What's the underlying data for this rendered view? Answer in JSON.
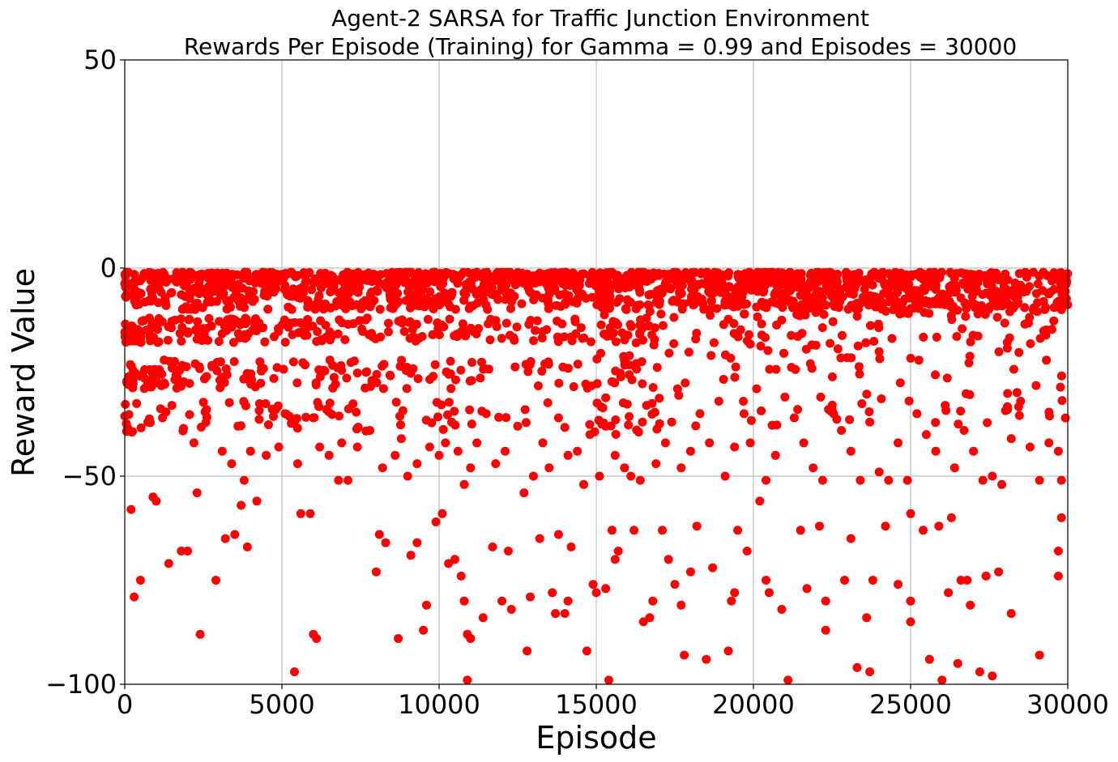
{
  "chart_data": {
    "type": "scatter",
    "title_line1": "Agent-2 SARSA for Traffic Junction Environment",
    "title_line2": "Rewards Per Episode (Training) for Gamma = 0.99 and Episodes = 30000",
    "xlabel": "Episode",
    "ylabel": "Reward Value",
    "xlim": [
      0,
      30000
    ],
    "ylim": [
      -100,
      50
    ],
    "x_ticks": [
      0,
      5000,
      10000,
      15000,
      20000,
      25000,
      30000
    ],
    "x_tick_labels": [
      "0",
      "5000",
      "10000",
      "15000",
      "20000",
      "25000",
      "30000"
    ],
    "y_ticks": [
      -100,
      -50,
      0,
      50
    ],
    "y_tick_labels": [
      "−100",
      "−50",
      "0",
      "50"
    ],
    "grid": true,
    "marker_color": "#ff0000",
    "series": [
      {
        "points": [
          [
            300,
            -79
          ],
          [
            500,
            -75
          ],
          [
            200,
            -58
          ],
          [
            900,
            -55
          ],
          [
            1000,
            -56
          ],
          [
            1400,
            -71
          ],
          [
            1800,
            -68
          ],
          [
            2000,
            -68
          ],
          [
            2300,
            -54
          ],
          [
            2400,
            -88
          ],
          [
            2900,
            -75
          ],
          [
            3200,
            -65
          ],
          [
            3500,
            -64
          ],
          [
            3700,
            -57
          ],
          [
            3800,
            -51
          ],
          [
            3900,
            -67
          ],
          [
            4200,
            -56
          ],
          [
            5400,
            -97
          ],
          [
            5600,
            -59
          ],
          [
            5900,
            -59
          ],
          [
            6000,
            -88
          ],
          [
            6100,
            -89
          ],
          [
            6800,
            -51
          ],
          [
            7100,
            -51
          ],
          [
            8000,
            -73
          ],
          [
            8100,
            -64
          ],
          [
            8300,
            -66
          ],
          [
            8700,
            -89
          ],
          [
            9100,
            -69
          ],
          [
            9300,
            -66
          ],
          [
            9500,
            -87
          ],
          [
            9600,
            -81
          ],
          [
            9900,
            -61
          ],
          [
            10100,
            -59
          ],
          [
            10300,
            -71
          ],
          [
            10500,
            -70
          ],
          [
            10700,
            -74
          ],
          [
            10800,
            -80
          ],
          [
            10900,
            -88
          ],
          [
            10900,
            -99
          ],
          [
            11000,
            -89
          ],
          [
            11400,
            -84
          ],
          [
            11700,
            -67
          ],
          [
            12000,
            -80
          ],
          [
            12200,
            -68
          ],
          [
            12300,
            -82
          ],
          [
            12800,
            -92
          ],
          [
            12900,
            -79
          ],
          [
            13200,
            -65
          ],
          [
            13600,
            -78
          ],
          [
            13700,
            -83
          ],
          [
            13800,
            -64
          ],
          [
            14000,
            -83
          ],
          [
            14100,
            -80
          ],
          [
            14200,
            -67
          ],
          [
            14700,
            -92
          ],
          [
            14900,
            -76
          ],
          [
            15000,
            -78
          ],
          [
            15300,
            -77
          ],
          [
            15500,
            -63
          ],
          [
            15600,
            -70
          ],
          [
            15700,
            -68
          ],
          [
            15400,
            -99
          ],
          [
            16200,
            -63
          ],
          [
            16500,
            -85
          ],
          [
            16700,
            -84
          ],
          [
            16800,
            -80
          ],
          [
            17100,
            -63
          ],
          [
            17300,
            -70
          ],
          [
            17500,
            -76
          ],
          [
            17700,
            -81
          ],
          [
            17800,
            -93
          ],
          [
            18000,
            -73
          ],
          [
            18200,
            -62
          ],
          [
            18500,
            -94
          ],
          [
            18700,
            -72
          ],
          [
            19200,
            -92
          ],
          [
            19300,
            -80
          ],
          [
            19400,
            -78
          ],
          [
            19500,
            -63
          ],
          [
            19800,
            -68
          ],
          [
            20200,
            -56
          ],
          [
            20400,
            -75
          ],
          [
            20500,
            -78
          ],
          [
            20900,
            -82
          ],
          [
            21100,
            -99
          ],
          [
            21500,
            -63
          ],
          [
            21700,
            -77
          ],
          [
            22100,
            -62
          ],
          [
            22300,
            -80
          ],
          [
            22300,
            -87
          ],
          [
            22900,
            -75
          ],
          [
            23100,
            -65
          ],
          [
            23300,
            -96
          ],
          [
            23600,
            -84
          ],
          [
            23700,
            -97
          ],
          [
            23800,
            -75
          ],
          [
            24200,
            -62
          ],
          [
            24600,
            -76
          ],
          [
            25000,
            -80
          ],
          [
            25000,
            -85
          ],
          [
            25000,
            -59
          ],
          [
            25400,
            -63
          ],
          [
            25600,
            -94
          ],
          [
            25900,
            -62
          ],
          [
            26000,
            -99
          ],
          [
            26200,
            -78
          ],
          [
            26300,
            -60
          ],
          [
            26500,
            -95
          ],
          [
            26600,
            -75
          ],
          [
            26800,
            -75
          ],
          [
            26900,
            -81
          ],
          [
            27200,
            -97
          ],
          [
            27400,
            -74
          ],
          [
            27600,
            -98
          ],
          [
            27800,
            -73
          ],
          [
            28200,
            -83
          ],
          [
            29100,
            -93
          ],
          [
            29700,
            -74
          ],
          [
            29800,
            -60
          ],
          [
            29700,
            -68
          ],
          [
            1200,
            -36
          ],
          [
            1500,
            -33
          ],
          [
            2200,
            -42
          ],
          [
            2600,
            -34
          ],
          [
            3100,
            -44
          ],
          [
            3400,
            -47
          ],
          [
            3600,
            -38
          ],
          [
            4000,
            -44
          ],
          [
            4500,
            -45
          ],
          [
            4900,
            -43
          ],
          [
            5100,
            -35
          ],
          [
            5500,
            -47
          ],
          [
            6000,
            -36
          ],
          [
            6200,
            -43
          ],
          [
            6500,
            -45
          ],
          [
            6900,
            -42
          ],
          [
            7400,
            -43
          ],
          [
            7800,
            -39
          ],
          [
            8200,
            -48
          ],
          [
            8600,
            -45
          ],
          [
            8800,
            -41
          ],
          [
            9000,
            -50
          ],
          [
            9300,
            -47
          ],
          [
            9700,
            -43
          ],
          [
            10000,
            -45
          ],
          [
            10200,
            -42
          ],
          [
            10400,
            -37
          ],
          [
            10600,
            -44
          ],
          [
            10800,
            -52
          ],
          [
            11000,
            -48
          ],
          [
            11200,
            -42
          ],
          [
            11500,
            -35
          ],
          [
            11800,
            -47
          ],
          [
            12100,
            -44
          ],
          [
            12500,
            -38
          ],
          [
            12700,
            -54
          ],
          [
            13000,
            -50
          ],
          [
            13300,
            -42
          ],
          [
            13500,
            -48
          ],
          [
            13800,
            -36
          ],
          [
            14100,
            -45
          ],
          [
            14400,
            -44
          ],
          [
            14600,
            -52
          ],
          [
            14800,
            -40
          ],
          [
            15100,
            -50
          ],
          [
            15300,
            -38
          ],
          [
            15600,
            -45
          ],
          [
            15900,
            -48
          ],
          [
            16100,
            -50
          ],
          [
            16400,
            -51
          ],
          [
            16600,
            -33
          ],
          [
            16900,
            -47
          ],
          [
            17200,
            -42
          ],
          [
            17400,
            -37
          ],
          [
            17700,
            -48
          ],
          [
            18000,
            -44
          ],
          [
            18300,
            -35
          ],
          [
            18600,
            -42
          ],
          [
            18900,
            -32
          ],
          [
            19100,
            -50
          ],
          [
            19400,
            -43
          ],
          [
            19700,
            -35
          ],
          [
            19900,
            -42
          ],
          [
            20100,
            -29
          ],
          [
            20400,
            -51
          ],
          [
            20700,
            -45
          ],
          [
            21000,
            -31
          ],
          [
            21300,
            -36
          ],
          [
            21600,
            -42
          ],
          [
            21900,
            -48
          ],
          [
            22200,
            -51
          ],
          [
            22500,
            -34
          ],
          [
            22800,
            -39
          ],
          [
            23100,
            -44
          ],
          [
            23400,
            -51
          ],
          [
            23700,
            -37
          ],
          [
            24000,
            -49
          ],
          [
            24300,
            -51
          ],
          [
            24600,
            -42
          ],
          [
            24900,
            -51
          ],
          [
            25200,
            -35
          ],
          [
            25500,
            -40
          ],
          [
            25800,
            -44
          ],
          [
            26100,
            -33
          ],
          [
            26400,
            -48
          ],
          [
            26700,
            -39
          ],
          [
            27000,
            -44
          ],
          [
            27300,
            -51
          ],
          [
            27600,
            -50
          ],
          [
            27900,
            -52
          ],
          [
            28200,
            -41
          ],
          [
            28500,
            -32
          ],
          [
            28800,
            -43
          ],
          [
            29100,
            -51
          ],
          [
            29400,
            -42
          ],
          [
            29700,
            -44
          ],
          [
            29800,
            -51
          ]
        ]
      }
    ]
  }
}
